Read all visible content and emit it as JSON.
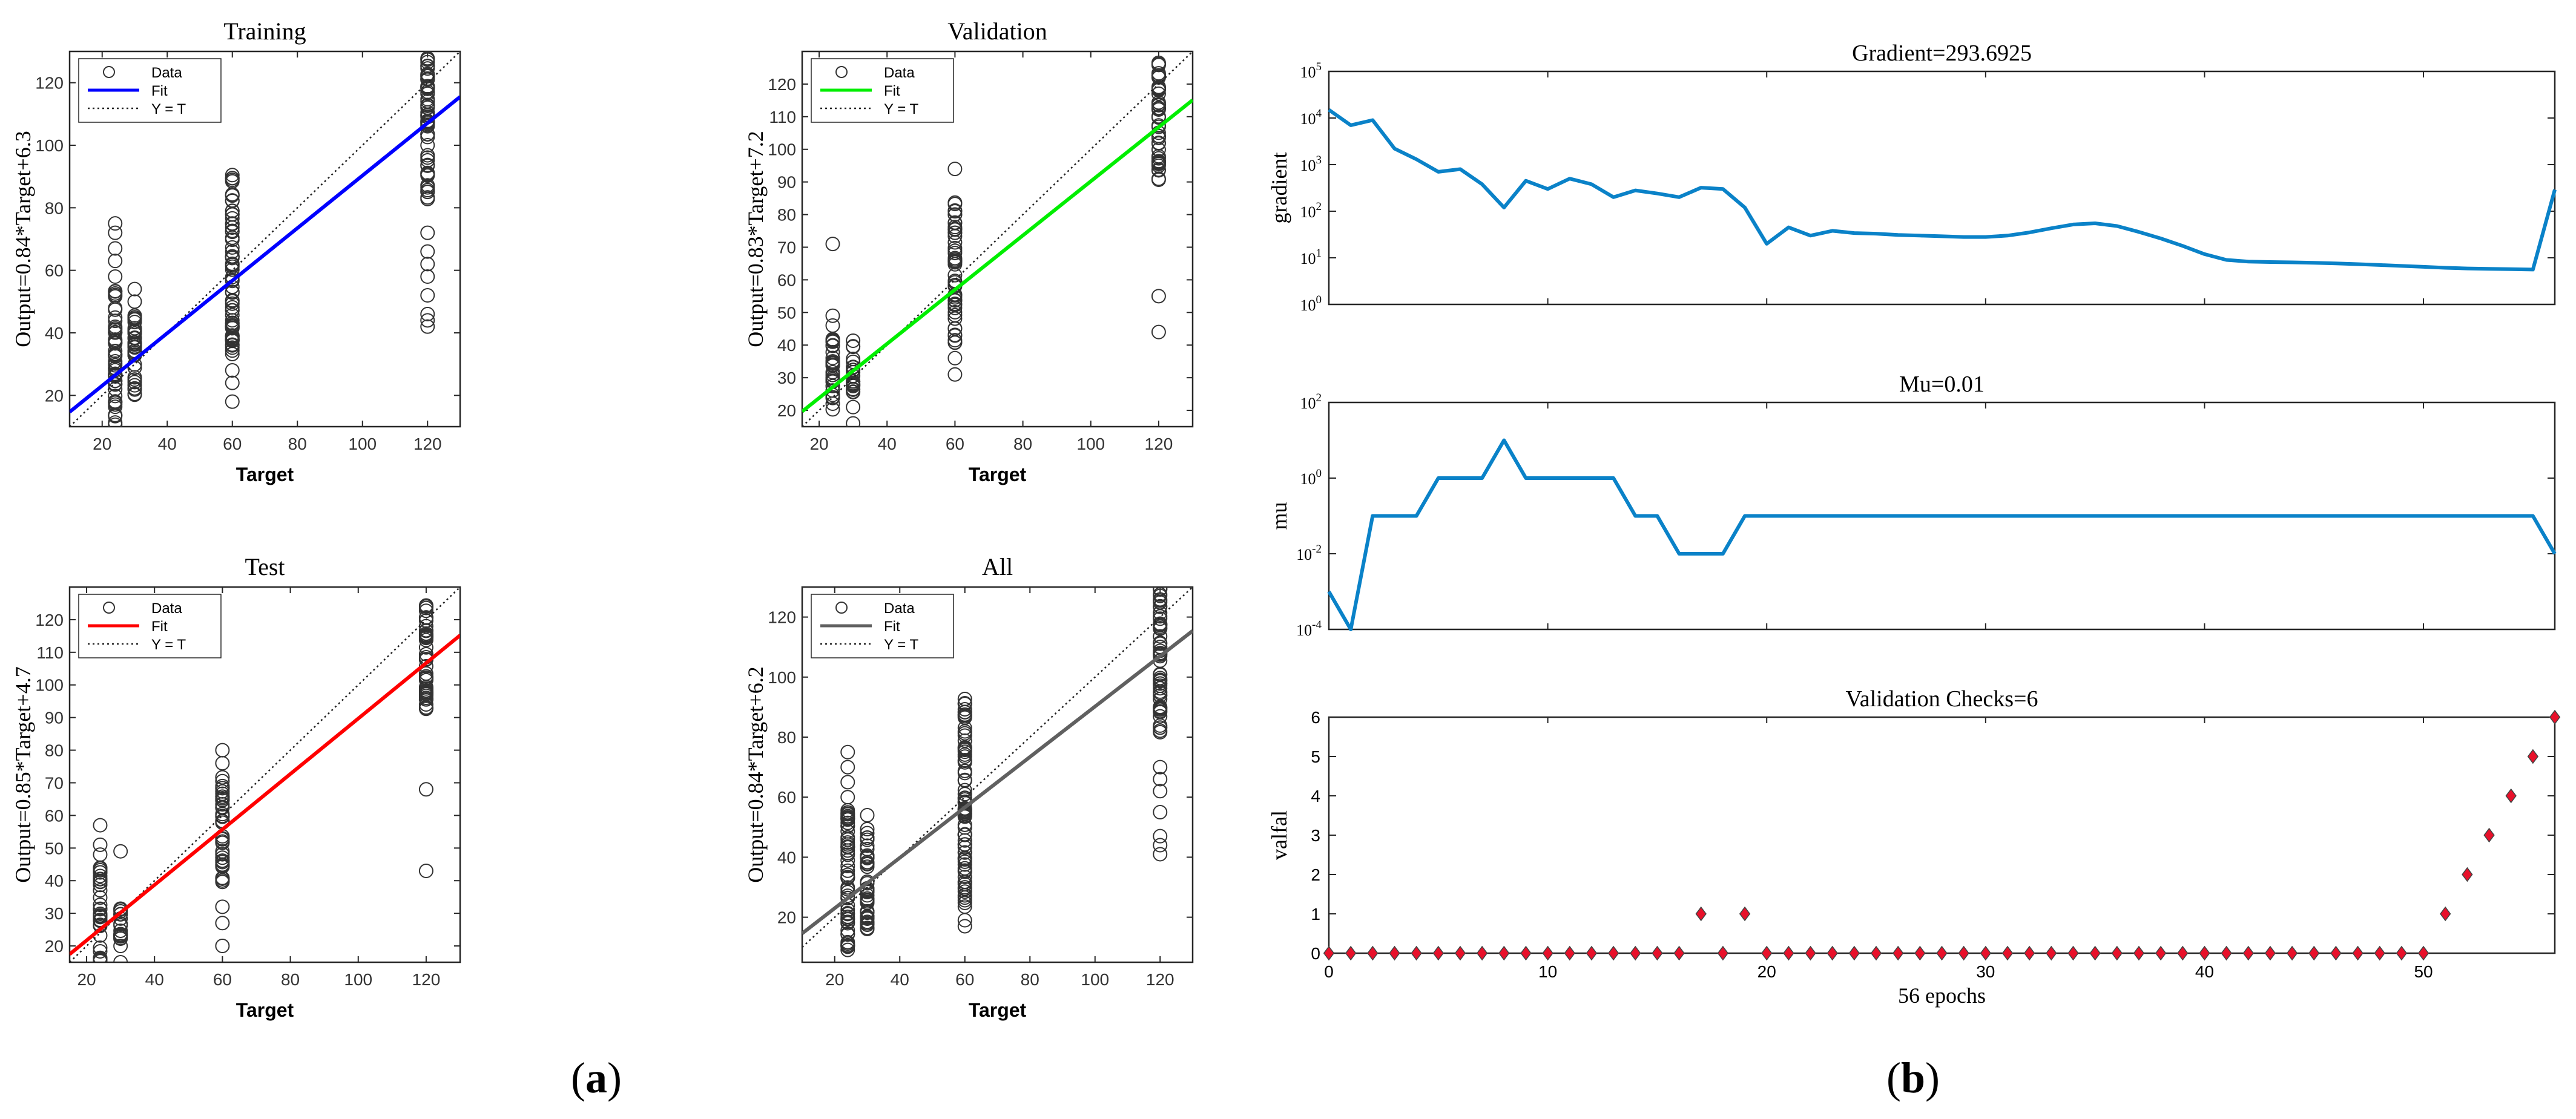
{
  "colors": {
    "training_fit": "#0000ff",
    "validation_fit": "#00ee00",
    "test_fit": "#ff0000",
    "all_fit": "#606060",
    "perf_line": "#0a82c8",
    "check_marker": "#e8102a"
  },
  "panel_labels": {
    "a_open": "(",
    "a_letter": "a",
    "a_close": ")",
    "b_open": "(",
    "b_letter": "b",
    "b_close": ")"
  },
  "legend": {
    "data": "Data",
    "fit": "Fit",
    "yt": "Y = T"
  },
  "chart_data": [
    {
      "type": "scatter",
      "title": "Training",
      "xlabel": "Target",
      "ylabel": "Output=0.84*Target+6.3",
      "xlim": [
        10,
        130
      ],
      "ylim": [
        10,
        130
      ],
      "xticks": [
        20,
        40,
        60,
        80,
        100,
        120
      ],
      "yticks": [
        20,
        40,
        60,
        80,
        100,
        120
      ],
      "fit": {
        "slope": 0.84,
        "intercept": 6.3
      },
      "clusters": [
        {
          "x": 24,
          "y_min": 10,
          "y_max": 54,
          "extra": [
            58,
            63,
            67,
            72,
            75
          ]
        },
        {
          "x": 30,
          "y_min": 20,
          "y_max": 46,
          "extra": [
            50,
            54
          ]
        },
        {
          "x": 60,
          "y_min": 32,
          "y_max": 92,
          "extra": [
            18,
            24,
            28
          ]
        },
        {
          "x": 120,
          "y_min": 82,
          "y_max": 130,
          "extra": [
            42,
            44,
            46,
            52,
            58,
            62,
            66,
            72
          ]
        }
      ]
    },
    {
      "type": "scatter",
      "title": "Validation",
      "xlabel": "Target",
      "ylabel": "Output=0.83*Target+7.2",
      "xlim": [
        15,
        130
      ],
      "ylim": [
        15,
        130
      ],
      "xticks": [
        20,
        40,
        60,
        80,
        100,
        120
      ],
      "yticks": [
        20,
        30,
        40,
        50,
        60,
        70,
        80,
        90,
        100,
        110,
        120
      ],
      "fit": {
        "slope": 0.83,
        "intercept": 7.2
      },
      "clusters": [
        {
          "x": 24,
          "y_min": 18,
          "y_max": 42,
          "extra": [
            46,
            49,
            71
          ]
        },
        {
          "x": 30,
          "y_min": 24,
          "y_max": 42,
          "extra": [
            16,
            21
          ]
        },
        {
          "x": 60,
          "y_min": 40,
          "y_max": 84,
          "extra": [
            31,
            36,
            94
          ]
        },
        {
          "x": 120,
          "y_min": 90,
          "y_max": 128,
          "extra": [
            44,
            55
          ]
        }
      ]
    },
    {
      "type": "scatter",
      "title": "Test",
      "xlabel": "Target",
      "ylabel": "Output=0.85*Target+4.7",
      "xlim": [
        15,
        130
      ],
      "ylim": [
        15,
        130
      ],
      "xticks": [
        20,
        40,
        60,
        80,
        100,
        120
      ],
      "yticks": [
        20,
        30,
        40,
        50,
        60,
        70,
        80,
        90,
        100,
        110,
        120
      ],
      "fit": {
        "slope": 0.85,
        "intercept": 4.7
      },
      "clusters": [
        {
          "x": 24,
          "y_min": 15,
          "y_max": 44,
          "extra": [
            48,
            51,
            57
          ]
        },
        {
          "x": 30,
          "y_min": 22,
          "y_max": 34,
          "extra": [
            15,
            20,
            49
          ]
        },
        {
          "x": 60,
          "y_min": 38,
          "y_max": 72,
          "extra": [
            20,
            27,
            32,
            76,
            80
          ]
        },
        {
          "x": 120,
          "y_min": 92,
          "y_max": 127,
          "extra": [
            43,
            68
          ]
        }
      ]
    },
    {
      "type": "scatter",
      "title": "All",
      "xlabel": "Target",
      "ylabel": "Output=0.84*Target+6.2",
      "xlim": [
        10,
        130
      ],
      "ylim": [
        5,
        130
      ],
      "xticks": [
        20,
        40,
        60,
        80,
        100,
        120
      ],
      "yticks": [
        20,
        40,
        60,
        80,
        100,
        120
      ],
      "fit": {
        "slope": 0.84,
        "intercept": 6.2
      },
      "clusters": [
        {
          "x": 24,
          "y_min": 8,
          "y_max": 56,
          "extra": [
            60,
            65,
            70,
            75
          ]
        },
        {
          "x": 30,
          "y_min": 16,
          "y_max": 52,
          "extra": [
            54
          ]
        },
        {
          "x": 60,
          "y_min": 22,
          "y_max": 94,
          "extra": [
            17,
            19
          ]
        },
        {
          "x": 120,
          "y_min": 80,
          "y_max": 130,
          "extra": [
            41,
            44,
            47,
            55,
            62,
            66,
            70
          ]
        }
      ]
    },
    {
      "type": "line",
      "title": "Gradient=293.6925",
      "ylabel": "gradient",
      "yscale": "log",
      "xlim": [
        0,
        56
      ],
      "ylim_exp": [
        0,
        5
      ],
      "yticks": [
        {
          "base": "10",
          "exp": "5"
        },
        {
          "base": "10",
          "exp": "4"
        },
        {
          "base": "10",
          "exp": "3"
        },
        {
          "base": "10",
          "exp": "2"
        },
        {
          "base": "10",
          "exp": "1"
        },
        {
          "base": "10",
          "exp": "0"
        }
      ],
      "x": [
        0,
        1,
        2,
        3,
        4,
        5,
        6,
        7,
        8,
        9,
        10,
        11,
        12,
        13,
        14,
        15,
        16,
        17,
        18,
        19,
        20,
        21,
        22,
        23,
        24,
        25,
        26,
        27,
        28,
        29,
        30,
        31,
        32,
        33,
        34,
        35,
        36,
        37,
        38,
        39,
        40,
        41,
        42,
        43,
        44,
        45,
        46,
        47,
        48,
        49,
        50,
        51,
        52,
        53,
        54,
        55,
        56
      ],
      "values": [
        15000,
        7000,
        9000,
        2200,
        1300,
        700,
        800,
        380,
        120,
        450,
        300,
        500,
        380,
        200,
        280,
        240,
        200,
        320,
        300,
        120,
        20,
        45,
        30,
        38,
        34,
        33,
        31,
        30,
        29,
        28,
        28,
        30,
        35,
        43,
        52,
        55,
        48,
        36,
        26,
        18,
        12,
        9,
        8.3,
        8.1,
        8,
        7.8,
        7.6,
        7.3,
        7,
        6.7,
        6.4,
        6.1,
        5.9,
        5.8,
        5.7,
        5.6,
        290
      ]
    },
    {
      "type": "line",
      "title": "Mu=0.01",
      "ylabel": "mu",
      "yscale": "log",
      "xlim": [
        0,
        56
      ],
      "ylim_exp": [
        -4,
        2
      ],
      "yticks": [
        {
          "base": "10",
          "exp": "2"
        },
        {
          "base": "10",
          "exp": "0"
        },
        {
          "base": "10",
          "exp": "-2"
        },
        {
          "base": "10",
          "exp": "-4"
        }
      ],
      "x": [
        0,
        1,
        2,
        3,
        4,
        5,
        6,
        7,
        8,
        9,
        10,
        11,
        12,
        13,
        14,
        15,
        16,
        17,
        18,
        19,
        20,
        21,
        22,
        23,
        24,
        25,
        26,
        27,
        28,
        29,
        30,
        31,
        32,
        33,
        34,
        35,
        36,
        37,
        38,
        39,
        40,
        41,
        42,
        43,
        44,
        45,
        46,
        47,
        48,
        49,
        50,
        51,
        52,
        53,
        54,
        55,
        56
      ],
      "values": [
        0.001,
        0.0001,
        0.1,
        0.1,
        0.1,
        1,
        1,
        1,
        10,
        1,
        1,
        1,
        1,
        1,
        0.1,
        0.1,
        0.01,
        0.01,
        0.01,
        0.1,
        0.1,
        0.1,
        0.1,
        0.1,
        0.1,
        0.1,
        0.1,
        0.1,
        0.1,
        0.1,
        0.1,
        0.1,
        0.1,
        0.1,
        0.1,
        0.1,
        0.1,
        0.1,
        0.1,
        0.1,
        0.1,
        0.1,
        0.1,
        0.1,
        0.1,
        0.1,
        0.1,
        0.1,
        0.1,
        0.1,
        0.1,
        0.1,
        0.1,
        0.1,
        0.1,
        0.1,
        0.01
      ]
    },
    {
      "type": "scatter",
      "title": "Validation Checks=6",
      "ylabel": "valfal",
      "xlabel": "56 epochs",
      "xlim": [
        0,
        56
      ],
      "ylim": [
        0,
        6
      ],
      "xticks": [
        0,
        10,
        20,
        30,
        40,
        50
      ],
      "yticks": [
        0,
        1,
        2,
        3,
        4,
        5,
        6
      ],
      "x": [
        0,
        1,
        2,
        3,
        4,
        5,
        6,
        7,
        8,
        9,
        10,
        11,
        12,
        13,
        14,
        15,
        16,
        17,
        18,
        19,
        20,
        21,
        22,
        23,
        24,
        25,
        26,
        27,
        28,
        29,
        30,
        31,
        32,
        33,
        34,
        35,
        36,
        37,
        38,
        39,
        40,
        41,
        42,
        43,
        44,
        45,
        46,
        47,
        48,
        49,
        50,
        51,
        52,
        53,
        54,
        55,
        56
      ],
      "values": [
        0,
        0,
        0,
        0,
        0,
        0,
        0,
        0,
        0,
        0,
        0,
        0,
        0,
        0,
        0,
        0,
        0,
        1,
        0,
        1,
        0,
        0,
        0,
        0,
        0,
        0,
        0,
        0,
        0,
        0,
        0,
        0,
        0,
        0,
        0,
        0,
        0,
        0,
        0,
        0,
        0,
        0,
        0,
        0,
        0,
        0,
        0,
        0,
        0,
        0,
        0,
        1,
        2,
        3,
        4,
        5,
        6
      ]
    }
  ]
}
